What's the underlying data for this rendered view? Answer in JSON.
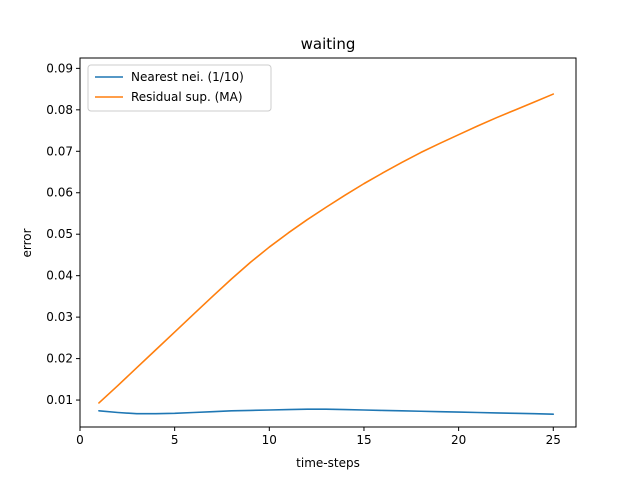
{
  "chart_data": {
    "type": "line",
    "title": "waiting",
    "xlabel": "time-steps",
    "ylabel": "error",
    "xlim": [
      0,
      26.2
    ],
    "ylim": [
      0.0035,
      0.0925
    ],
    "xticks": [
      0,
      5,
      10,
      15,
      20,
      25
    ],
    "yticks": [
      0.01,
      0.02,
      0.03,
      0.04,
      0.05,
      0.06,
      0.07,
      0.08,
      0.09
    ],
    "xtick_labels": [
      "0",
      "5",
      "10",
      "15",
      "20",
      "25"
    ],
    "ytick_labels": [
      "0.01",
      "0.02",
      "0.03",
      "0.04",
      "0.05",
      "0.06",
      "0.07",
      "0.08",
      "0.09"
    ],
    "grid": false,
    "legend_position": "upper-left",
    "x": [
      1,
      2,
      3,
      4,
      5,
      6,
      7,
      8,
      9,
      10,
      11,
      12,
      13,
      14,
      15,
      16,
      17,
      18,
      19,
      20,
      21,
      22,
      23,
      24,
      25
    ],
    "series": [
      {
        "name": "Nearest nei. (1/10)",
        "color": "#1f77b4",
        "values": [
          0.0074,
          0.007,
          0.0067,
          0.0067,
          0.0068,
          0.007,
          0.0072,
          0.0074,
          0.0075,
          0.0076,
          0.0077,
          0.0078,
          0.0078,
          0.0077,
          0.0076,
          0.0075,
          0.0074,
          0.0073,
          0.0072,
          0.0071,
          0.007,
          0.0069,
          0.0068,
          0.0067,
          0.0066
        ]
      },
      {
        "name": "Residual sup. (MA)",
        "color": "#ff7f0e",
        "values": [
          0.0093,
          0.0135,
          0.0178,
          0.0221,
          0.0264,
          0.0307,
          0.035,
          0.0392,
          0.0432,
          0.0469,
          0.0503,
          0.0535,
          0.0565,
          0.0594,
          0.0622,
          0.0648,
          0.0673,
          0.0697,
          0.0719,
          0.074,
          0.0761,
          0.0781,
          0.08,
          0.0819,
          0.0838
        ]
      }
    ]
  }
}
